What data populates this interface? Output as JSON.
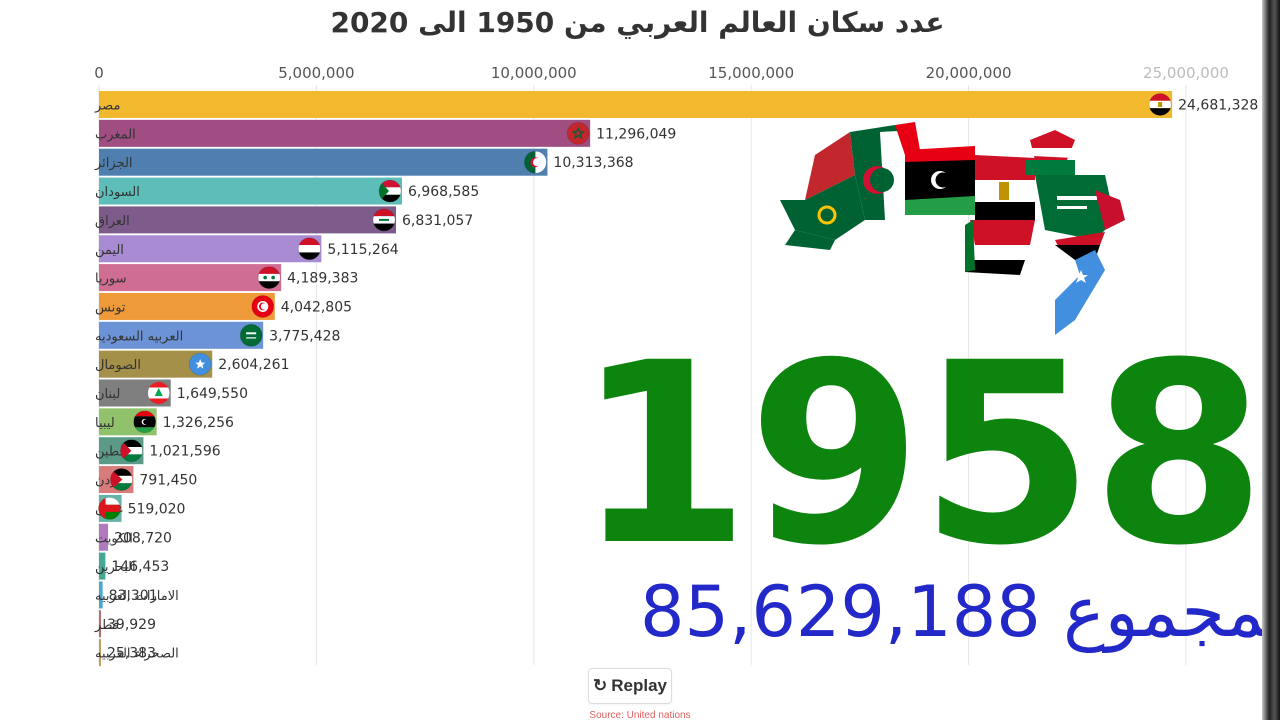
{
  "title": "عدد سكان العالم العربي من 1950 الى 2020",
  "year": "1958",
  "total": {
    "label": "المجموع",
    "value": "85,629,188"
  },
  "replay_label": "Replay",
  "source": "Source: United nations",
  "colors": {
    "year": "#0d840d",
    "total": "#2328c8"
  },
  "chart_data": {
    "type": "bar",
    "orientation": "horizontal",
    "title": "عدد سكان العالم العربي من 1950 الى 2020",
    "xlim": [
      0,
      25000000
    ],
    "x_ticks": [
      0,
      5000000,
      10000000,
      15000000,
      20000000,
      25000000
    ],
    "x_tick_labels": [
      "0",
      "5,000,000",
      "10,000,000",
      "15,000,000",
      "20,000,000",
      "25,000,000"
    ],
    "grid": true,
    "categories": [
      "مصر",
      "المغرب",
      "الجزائر",
      "السودان",
      "العراق",
      "اليمن",
      "سوريا",
      "تونس",
      "العربيه السعوديه",
      "الصومال",
      "لبنان",
      "ليبيا",
      "فلسطين",
      "الاردن",
      "عمان",
      "الكويت",
      "البحرين",
      "الامارات العربيه",
      "قطر",
      "الصحراء الغربيه"
    ],
    "values": [
      24681328,
      11296049,
      10313368,
      6968585,
      6831057,
      5115264,
      4189383,
      4042805,
      3775428,
      2604261,
      1649550,
      1326256,
      1021596,
      791450,
      519020,
      208720,
      146453,
      83301,
      39929,
      25383
    ],
    "value_labels": [
      "24,681,328",
      "11,296,049",
      "10,313,368",
      "6,968,585",
      "6,831,057",
      "5,115,264",
      "4,189,383",
      "4,042,805",
      "3,775,428",
      "2,604,261",
      "1,649,550",
      "1,326,256",
      "1,021,596",
      "791,450",
      "519,020",
      "208,720",
      "146,453",
      "83,301",
      "39,929",
      "25,383"
    ],
    "bar_colors": [
      "#f2b92e",
      "#a04e82",
      "#4e7fae",
      "#5cbdb9",
      "#7d5b8a",
      "#a98bd4",
      "#cf6d93",
      "#ef9a39",
      "#6b93d6",
      "#a5904a",
      "#7f7f7f",
      "#8fc26b",
      "#5a9a87",
      "#d97b7b",
      "#64b3a6",
      "#b07bbd",
      "#43a894",
      "#4aa8d0",
      "#b56e6e",
      "#c2a05a"
    ],
    "flags": [
      "egypt",
      "morocco",
      "algeria",
      "sudan",
      "iraq",
      "yemen",
      "syria",
      "tunisia",
      "saudi-arabia",
      "somalia",
      "lebanon",
      "libya",
      "palestine",
      "jordan",
      "oman",
      "kuwait",
      "bahrain",
      "uae",
      "qatar",
      "western-sahara"
    ]
  }
}
